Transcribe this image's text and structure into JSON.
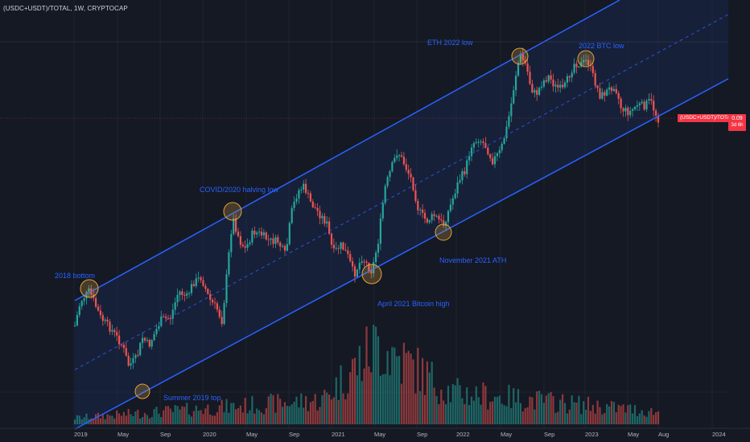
{
  "title": "(USDC+USDT)/TOTAL, 1W, CRYPTOCAP",
  "annotations": {
    "bottom_2018": "2018 bottom",
    "covid": "COVID/2020 halving low",
    "summer_2019": "Summer 2019 top",
    "april_2021": "April 2021 Bitcoin high",
    "nov_2021": "November 2021 ATH",
    "eth_2022": "ETH 2022 low",
    "btc_2022": "2022 BTC low"
  },
  "price_tag": {
    "label": "(USDC+USDT)/TOTAL",
    "value": "0.09",
    "countdown": "3d 6h"
  },
  "x_ticks": [
    "2019",
    "May",
    "Sep",
    "2020",
    "May",
    "Sep",
    "2021",
    "May",
    "Sep",
    "2022",
    "May",
    "Sep",
    "2023",
    "May",
    "Aug",
    "2024"
  ],
  "colors": {
    "up": "#26a69a",
    "down": "#ef5350",
    "channel": "#2962ff",
    "circle": "#e0a33a",
    "background": "#151924"
  },
  "chart_data": {
    "type": "candlestick",
    "interval": "1W",
    "symbol": "(USDC+USDT)/TOTAL",
    "x_range": [
      "2019-01",
      "2024-01"
    ],
    "last_value": 0.09,
    "channel": "ascending parallel channel with dashed midline",
    "highlighted_points": [
      "2018 bottom",
      "COVID/2020 halving low",
      "Summer 2019 top",
      "April 2021 Bitcoin high",
      "November 2021 ATH",
      "ETH 2022 low",
      "2022 BTC low"
    ]
  }
}
